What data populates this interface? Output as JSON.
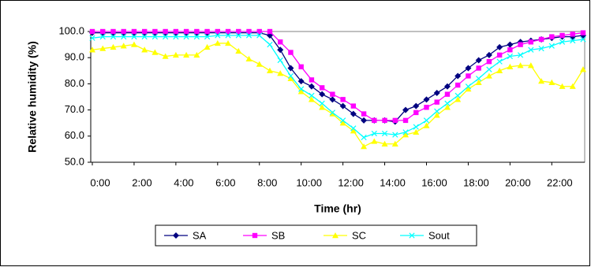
{
  "chart_data": {
    "type": "line",
    "xlabel": "Time (hr)",
    "ylabel": "Relative humidity (%)",
    "categories": [
      "0:00",
      null,
      null,
      null,
      "2:00",
      null,
      null,
      null,
      "4:00",
      null,
      null,
      null,
      "6:00",
      null,
      null,
      null,
      "8:00",
      null,
      null,
      null,
      "10:00",
      null,
      null,
      null,
      "12:00",
      null,
      null,
      null,
      "14:00",
      null,
      null,
      null,
      "16:00",
      null,
      null,
      null,
      "18:00",
      null,
      null,
      null,
      "20:00",
      null,
      null,
      null,
      "22:00",
      null,
      null,
      null
    ],
    "series": [
      {
        "name": "SA",
        "color": "#000080",
        "marker": "diamond",
        "values": [
          99.5,
          99.5,
          99.5,
          99.5,
          99.5,
          99.5,
          99.5,
          99.5,
          99.5,
          99.5,
          99.5,
          99.5,
          99.5,
          99.5,
          99.5,
          99.5,
          99.5,
          98.5,
          93,
          86,
          81,
          79,
          76,
          74,
          71.5,
          68.5,
          66,
          66,
          66,
          65.5,
          70,
          71.5,
          74,
          76.5,
          79,
          83,
          86,
          89,
          91,
          94,
          95,
          96,
          96.5,
          97,
          97.5,
          98,
          98,
          98.5
        ]
      },
      {
        "name": "SB",
        "color": "#ff00ff",
        "marker": "square",
        "values": [
          100,
          100,
          100,
          100,
          100,
          100,
          100,
          100,
          100,
          100,
          100,
          100,
          100,
          100,
          100,
          100,
          100,
          100,
          96,
          92,
          86.5,
          81.5,
          78.5,
          76,
          74,
          71.5,
          68.5,
          66,
          66,
          66,
          66,
          69,
          71,
          73,
          76,
          79.5,
          83,
          86,
          88.5,
          91,
          93,
          95,
          96,
          97,
          98,
          98.5,
          99,
          99.5
        ]
      },
      {
        "name": "SC",
        "color": "#ffff00",
        "marker": "triangle",
        "values": [
          93,
          93.5,
          94,
          94.5,
          95,
          93,
          92,
          90.5,
          91,
          91,
          91,
          94,
          95.5,
          95.5,
          92.5,
          89.5,
          87.5,
          85,
          84,
          82,
          77,
          74,
          71,
          68.5,
          65,
          62,
          56,
          58,
          57,
          57,
          60.5,
          61.5,
          64,
          68,
          71,
          74,
          78,
          80.5,
          83,
          85,
          86.5,
          87,
          87,
          81,
          80.5,
          79,
          79,
          85.5
        ]
      },
      {
        "name": "Sout",
        "color": "#00ffff",
        "marker": "x",
        "values": [
          97.5,
          98,
          98,
          98,
          98,
          98,
          98,
          98,
          98,
          98,
          98,
          98,
          98.5,
          98.5,
          98.5,
          98.5,
          98.5,
          95,
          89,
          83,
          78,
          75.5,
          72.5,
          69,
          66,
          63,
          59.5,
          61,
          61,
          60.5,
          61.5,
          63.5,
          66,
          69.5,
          72.5,
          75.5,
          79,
          82,
          85.5,
          88.5,
          90.5,
          91,
          93,
          93.5,
          94.5,
          96,
          96.5,
          97
        ]
      }
    ],
    "ylim": [
      50,
      100
    ],
    "yticks": [
      {
        "value": 50,
        "label": "50.0"
      },
      {
        "value": 60,
        "label": "60.0"
      },
      {
        "value": 70,
        "label": "70.0"
      },
      {
        "value": 80,
        "label": "80.0"
      },
      {
        "value": 90,
        "label": "90.0"
      },
      {
        "value": 100,
        "label": "100.0"
      }
    ],
    "grid": false,
    "legend": "bottom"
  }
}
